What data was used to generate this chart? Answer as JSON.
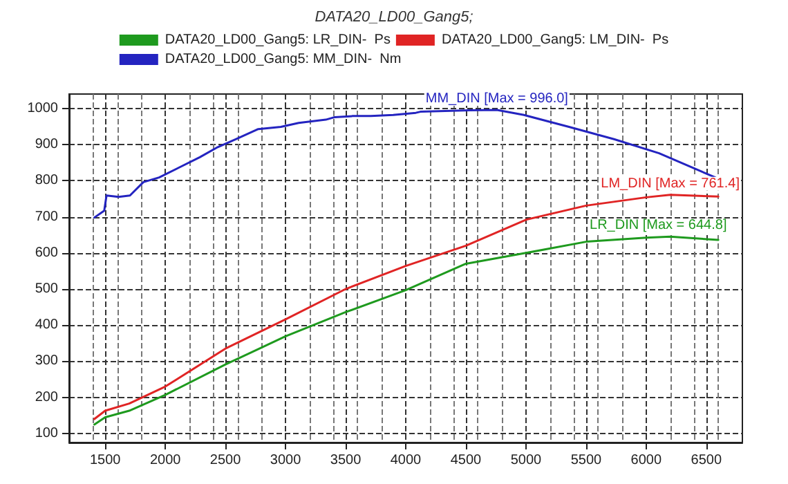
{
  "chart_data": {
    "type": "line",
    "title": "DATA20_LD00_Gang5;",
    "xlim": [
      1200,
      6800
    ],
    "xticks": [
      1500,
      2000,
      2500,
      3000,
      3500,
      4000,
      4500,
      5000,
      5500,
      6000,
      6500
    ],
    "ylim": [
      75,
      1040
    ],
    "yticks": [
      100,
      200,
      300,
      400,
      500,
      600,
      700,
      800,
      900,
      1000
    ],
    "grid": true,
    "legend": "top",
    "marker": "none",
    "line_style": "solid",
    "series": [
      {
        "name": "DATA20_LD00_Gang5: LR_DIN-  Ps",
        "color": "#1e9a1e",
        "x": [
          1410,
          1500,
          1700,
          2000,
          2500,
          3000,
          3500,
          4000,
          4500,
          5000,
          5500,
          6000,
          6200,
          6600
        ],
        "values": [
          125,
          145,
          163,
          207,
          291,
          369,
          436,
          497,
          570,
          600,
          631,
          642,
          645,
          636
        ]
      },
      {
        "name": "DATA20_LD00_Gang5: LM_DIN-  Ps",
        "color": "#e02424",
        "x": [
          1410,
          1500,
          1700,
          2000,
          2500,
          3000,
          3500,
          4000,
          4500,
          5000,
          5500,
          6000,
          6200,
          6600
        ],
        "values": [
          140,
          163,
          183,
          230,
          335,
          416,
          500,
          564,
          620,
          692,
          731,
          754,
          761,
          756
        ]
      },
      {
        "name": "DATA20_LD00_Gang5: MM_DIN-  Nm",
        "color": "#2424c0",
        "x": [
          1410,
          1492,
          1511,
          1612,
          1706,
          1818,
          1949,
          2118,
          2287,
          2436,
          2586,
          2773,
          2961,
          3110,
          3335,
          3410,
          3560,
          3710,
          3896,
          4084,
          4121,
          4534,
          4758,
          4983,
          5358,
          5732,
          6107,
          6575
        ],
        "values": [
          698,
          717,
          759,
          755,
          759,
          796,
          809,
          837,
          865,
          893,
          915,
          943,
          949,
          960,
          969,
          976,
          979,
          979,
          982,
          988,
          991,
          995,
          996,
          982,
          949,
          915,
          876,
          809
        ]
      }
    ],
    "annotations": [
      {
        "text": "MM_DIN [Max = 996.0]",
        "x": 4758,
        "y": 996
      },
      {
        "text": "LM_DIN [Max = 761.4]",
        "x": 6200,
        "y": 761
      },
      {
        "text": "LR_DIN [Max = 644.8]",
        "x": 6100,
        "y": 645
      }
    ]
  }
}
